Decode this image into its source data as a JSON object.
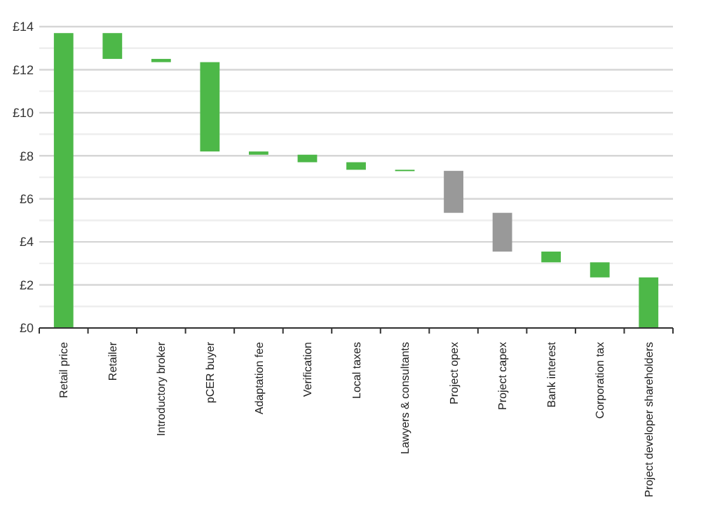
{
  "chart_data": {
    "type": "bar",
    "categories": [
      "Retail price",
      "Retailer",
      "Introductory broker",
      "pCER buyer",
      "Adaptation fee",
      "Verification",
      "Local taxes",
      "Lawyers & consultants",
      "Project opex",
      "Project capex",
      "Bank interest",
      "Corporation tax",
      "Project developer shareholders"
    ],
    "values": [
      13.7,
      1.2,
      0.15,
      4.15,
      0.15,
      0.35,
      0.35,
      0.05,
      1.95,
      1.8,
      0.5,
      0.7,
      2.35
    ],
    "base": [
      0,
      12.5,
      12.35,
      8.2,
      8.05,
      7.7,
      7.35,
      7.3,
      5.35,
      3.55,
      3.05,
      2.35,
      0
    ],
    "colors": [
      "#4db848",
      "#4db848",
      "#4db848",
      "#4db848",
      "#4db848",
      "#4db848",
      "#4db848",
      "#4db848",
      "#999999",
      "#999999",
      "#4db848",
      "#4db848",
      "#4db848"
    ],
    "ylim": [
      0,
      14
    ],
    "yticks": [
      {
        "value": 0,
        "label": "£0"
      },
      {
        "value": 1,
        "label": null
      },
      {
        "value": 2,
        "label": "£2"
      },
      {
        "value": 3,
        "label": null
      },
      {
        "value": 4,
        "label": "£4"
      },
      {
        "value": 5,
        "label": null
      },
      {
        "value": 6,
        "label": "£6"
      },
      {
        "value": 7,
        "label": null
      },
      {
        "value": 8,
        "label": "£8"
      },
      {
        "value": 9,
        "label": null
      },
      {
        "value": 10,
        "label": "£10"
      },
      {
        "value": 11,
        "label": null
      },
      {
        "value": 12,
        "label": "£12"
      },
      {
        "value": 13,
        "label": null
      },
      {
        "value": 14,
        "label": "£14"
      }
    ],
    "grid": "y"
  }
}
